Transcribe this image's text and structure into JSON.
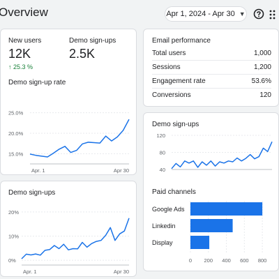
{
  "header": {
    "title": "Overview",
    "date_range": "Apr 1, 2024 - Apr 30",
    "date_caret": "▼",
    "help_icon": "help-circle-icon",
    "menu_icon": "apps-grid-icon"
  },
  "metrics_card": {
    "new_users_label": "New users",
    "new_users_value": "12K",
    "new_users_trend": "↑ 25.3 %",
    "demo_signups_label": "Demo sign-ups",
    "demo_signups_value": "2.5K"
  },
  "signup_rate_chart": {
    "chart_data": {
      "type": "line",
      "title": "Demo sign-up rate",
      "x_tick_labels": [
        "Apr. 1",
        "Apr 30"
      ],
      "y_tick_labels": [
        "15.0%",
        "20.0%",
        "25.0%"
      ],
      "ylim": [
        12.5,
        27.5
      ],
      "series": [
        {
          "values": [
            14.9,
            14.6,
            14.4,
            14.2,
            15.1,
            16.1,
            16.8,
            15.3,
            15.8,
            17.4,
            17.8,
            17.7,
            17.6,
            19.3,
            18.1,
            19.1,
            20.7,
            23.4
          ]
        }
      ],
      "color": "#1a73e8"
    }
  },
  "signups_chart_left": {
    "chart_data": {
      "type": "line",
      "title": "Demo sign-ups",
      "x_tick_labels": [
        "Apr. 1",
        "Apr 30"
      ],
      "y_tick_labels": [
        "0%",
        "10%",
        "20%"
      ],
      "ylim": [
        -2,
        24
      ],
      "series": [
        {
          "values": [
            0.6,
            2.5,
            2.2,
            2.6,
            2.1,
            4.1,
            4.4,
            6.1,
            4.8,
            6.6,
            4.3,
            4.8,
            4.7,
            7.4,
            5.4,
            6.9,
            7.8,
            8.2,
            10.3,
            13.5,
            8.2,
            10.9,
            12.1,
            17.4
          ]
        }
      ],
      "color": "#1a73e8"
    }
  },
  "email_performance": {
    "title": "Email performance",
    "rows": [
      {
        "label": "Total users",
        "value": "1,000"
      },
      {
        "label": "Sessions",
        "value": "1,200"
      },
      {
        "label": "Engagement rate",
        "value": "53.6%"
      },
      {
        "label": "Conversions",
        "value": "120"
      }
    ]
  },
  "signups_chart_right": {
    "chart_data": {
      "type": "line",
      "title": "Demo sign-ups",
      "y_tick_labels": [
        "40",
        "80",
        "120"
      ],
      "ylim": [
        40,
        120
      ],
      "series": [
        {
          "values": [
            42,
            54,
            46,
            60,
            55,
            60,
            45,
            58,
            50,
            60,
            48,
            58,
            55,
            60,
            58,
            67,
            60,
            66,
            75,
            65,
            70,
            90,
            82,
            105
          ]
        }
      ],
      "color": "#1a73e8"
    }
  },
  "paid_channels": {
    "chart_data": {
      "type": "bar",
      "title": "Paid channels",
      "categories": [
        "Google Ads",
        "Linkedin",
        "Display"
      ],
      "values": [
        800,
        470,
        210
      ],
      "x_tick_labels": [
        "0",
        "200",
        "400",
        "600",
        "800"
      ],
      "xlim": [
        0,
        900
      ],
      "color": "#1a73e8"
    }
  }
}
